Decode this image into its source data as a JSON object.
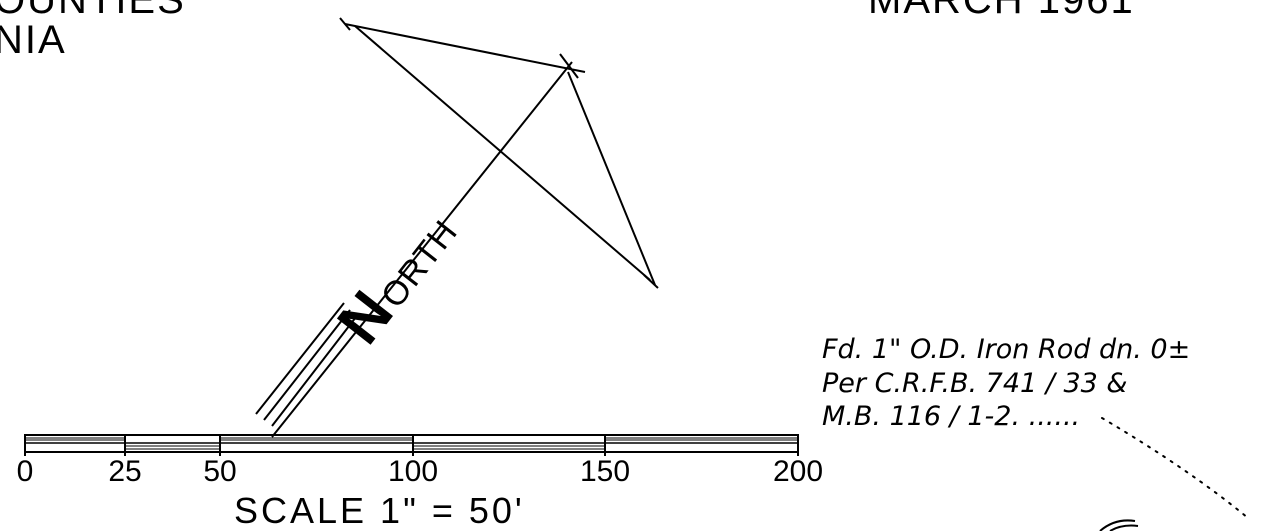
{
  "header": {
    "left_line1": "OUNTIES",
    "left_line2": "NIA",
    "right": "MARCH 1961"
  },
  "north_arrow": {
    "label_big": "N",
    "label_small": "ORTH"
  },
  "note": {
    "line1": "Fd. 1\" O.D. Iron Rod dn. 0±",
    "line2": "Per C.R.F.B. 741 / 33 &",
    "line3": "M.B. 116 / 1-2. ......"
  },
  "scale_bar": {
    "ticks": [
      "0",
      "25",
      "50",
      "100",
      "150",
      "200"
    ],
    "title": "SCALE  1\" = 50'"
  }
}
